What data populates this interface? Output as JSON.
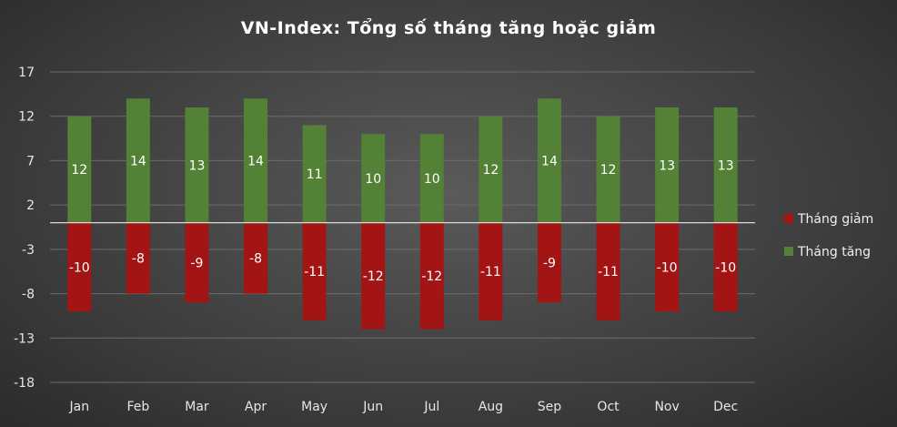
{
  "chart_data": {
    "type": "bar",
    "title": "VN-Index: Tổng số tháng tăng hoặc giảm",
    "categories": [
      "Jan",
      "Feb",
      "Mar",
      "Apr",
      "May",
      "Jun",
      "Jul",
      "Aug",
      "Sep",
      "Oct",
      "Nov",
      "Dec"
    ],
    "series": [
      {
        "name": "Tháng giảm",
        "color": "#a31515",
        "values": [
          -10,
          -8,
          -9,
          -8,
          -11,
          -12,
          -12,
          -11,
          -9,
          -11,
          -10,
          -10
        ]
      },
      {
        "name": "Tháng tăng",
        "color": "#538135",
        "values": [
          12,
          14,
          13,
          14,
          11,
          10,
          10,
          12,
          14,
          12,
          13,
          13
        ]
      }
    ],
    "ylim": [
      -18,
      17
    ],
    "yticks": [
      17,
      12,
      7,
      2,
      -3,
      -8,
      -13,
      -18
    ],
    "grid": true,
    "legend_position": "right",
    "stacked": true
  }
}
